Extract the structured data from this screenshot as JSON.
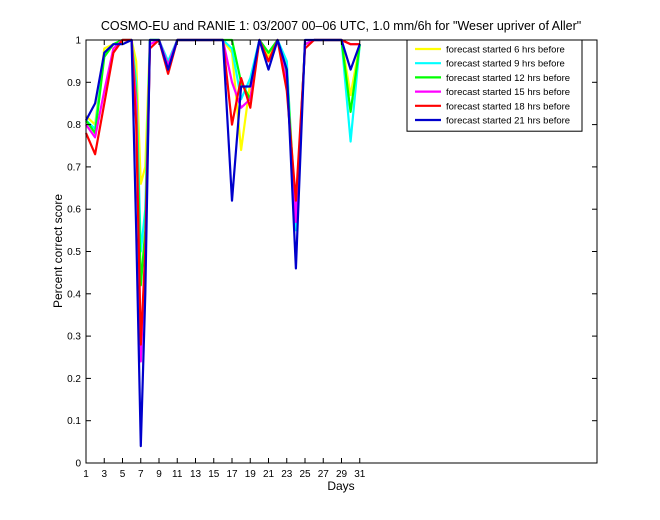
{
  "chart_data": {
    "type": "line",
    "title": "COSMO-EU and RANIE 1: 03/2007 00–06 UTC, 1.0 mm/6h for \"Weser upriver of Aller\"",
    "xlabel": "Days",
    "ylabel": "Percent correct score",
    "xlim": [
      1,
      57
    ],
    "ylim": [
      0,
      1
    ],
    "xticks": [
      1,
      3,
      5,
      7,
      9,
      11,
      13,
      15,
      17,
      19,
      21,
      23,
      25,
      27,
      29,
      31
    ],
    "yticks": [
      0,
      0.1,
      0.2,
      0.3,
      0.4,
      0.5,
      0.6,
      0.7,
      0.8,
      0.9,
      1
    ],
    "legend_position": "top-right",
    "grid": false,
    "series": [
      {
        "name": "forecast started 6 hrs before",
        "color": "#ffff00",
        "points": [
          [
            1,
            0.82
          ],
          [
            2,
            0.8
          ],
          [
            3,
            0.98
          ],
          [
            4,
            0.99
          ],
          [
            5,
            1
          ],
          [
            6,
            1
          ],
          [
            6.5,
            0.95
          ],
          [
            7,
            0.66
          ],
          [
            7.5,
            0.7
          ],
          [
            8,
            1
          ],
          [
            9,
            1
          ],
          [
            10,
            0.94
          ],
          [
            11,
            1
          ],
          [
            12,
            1
          ],
          [
            13,
            1
          ],
          [
            14,
            1
          ],
          [
            15,
            1
          ],
          [
            16,
            1
          ],
          [
            17,
            0.97
          ],
          [
            18,
            0.74
          ],
          [
            19,
            0.9
          ],
          [
            20,
            1
          ],
          [
            21,
            0.96
          ],
          [
            22,
            1
          ],
          [
            23,
            0.94
          ],
          [
            24,
            0.58
          ],
          [
            25,
            0.99
          ],
          [
            26,
            1
          ],
          [
            27,
            1
          ],
          [
            28,
            1
          ],
          [
            29,
            1
          ],
          [
            30,
            0.87
          ],
          [
            31,
            0.99
          ]
        ]
      },
      {
        "name": "forecast started 9 hrs before",
        "color": "#00ffff",
        "points": [
          [
            1,
            0.81
          ],
          [
            2,
            0.79
          ],
          [
            3,
            0.97
          ],
          [
            4,
            0.99
          ],
          [
            5,
            1
          ],
          [
            6,
            1
          ],
          [
            6.5,
            0.9
          ],
          [
            7,
            0.5
          ],
          [
            7.5,
            0.6
          ],
          [
            8,
            1
          ],
          [
            9,
            1
          ],
          [
            10,
            0.95
          ],
          [
            11,
            1
          ],
          [
            12,
            1
          ],
          [
            13,
            1
          ],
          [
            14,
            1
          ],
          [
            15,
            1
          ],
          [
            16,
            1
          ],
          [
            17,
            0.98
          ],
          [
            18,
            0.86
          ],
          [
            19,
            0.91
          ],
          [
            20,
            1
          ],
          [
            21,
            0.97
          ],
          [
            22,
            1
          ],
          [
            23,
            0.95
          ],
          [
            24,
            0.55
          ],
          [
            25,
            0.99
          ],
          [
            26,
            1
          ],
          [
            27,
            1
          ],
          [
            28,
            1
          ],
          [
            29,
            1
          ],
          [
            30,
            0.76
          ],
          [
            31,
            0.99
          ]
        ]
      },
      {
        "name": "forecast started 12 hrs before",
        "color": "#00ff00",
        "points": [
          [
            1,
            0.81
          ],
          [
            2,
            0.78
          ],
          [
            3,
            0.96
          ],
          [
            4,
            0.99
          ],
          [
            5,
            1
          ],
          [
            6,
            1
          ],
          [
            6.5,
            0.87
          ],
          [
            7,
            0.42
          ],
          [
            7.5,
            0.55
          ],
          [
            8,
            1
          ],
          [
            9,
            1
          ],
          [
            10,
            0.94
          ],
          [
            11,
            1
          ],
          [
            12,
            1
          ],
          [
            13,
            1
          ],
          [
            14,
            1
          ],
          [
            15,
            1
          ],
          [
            16,
            1
          ],
          [
            17,
            1
          ],
          [
            18,
            0.9
          ],
          [
            19,
            0.86
          ],
          [
            20,
            1
          ],
          [
            21,
            0.97
          ],
          [
            22,
            1
          ],
          [
            23,
            0.92
          ],
          [
            24,
            0.58
          ],
          [
            25,
            0.99
          ],
          [
            26,
            1
          ],
          [
            27,
            1
          ],
          [
            28,
            1
          ],
          [
            29,
            1
          ],
          [
            30,
            0.83
          ],
          [
            31,
            0.99
          ]
        ]
      },
      {
        "name": "forecast started 15 hrs before",
        "color": "#ff00ff",
        "points": [
          [
            1,
            0.8
          ],
          [
            2,
            0.77
          ],
          [
            3,
            0.88
          ],
          [
            4,
            0.98
          ],
          [
            5,
            1
          ],
          [
            6,
            1
          ],
          [
            6.5,
            0.85
          ],
          [
            7,
            0.24
          ],
          [
            7.5,
            0.5
          ],
          [
            8,
            0.99
          ],
          [
            9,
            1
          ],
          [
            10,
            0.94
          ],
          [
            11,
            1
          ],
          [
            12,
            1
          ],
          [
            13,
            1
          ],
          [
            14,
            1
          ],
          [
            15,
            1
          ],
          [
            16,
            1
          ],
          [
            17,
            0.9
          ],
          [
            18,
            0.84
          ],
          [
            19,
            0.86
          ],
          [
            20,
            1
          ],
          [
            21,
            0.95
          ],
          [
            22,
            1
          ],
          [
            23,
            0.9
          ],
          [
            24,
            0.57
          ],
          [
            25,
            0.99
          ],
          [
            26,
            1
          ],
          [
            27,
            1
          ],
          [
            28,
            1
          ],
          [
            29,
            1
          ],
          [
            30,
            0.99
          ],
          [
            31,
            0.99
          ]
        ]
      },
      {
        "name": "forecast started 18 hrs before",
        "color": "#ff0000",
        "points": [
          [
            1,
            0.78
          ],
          [
            2,
            0.73
          ],
          [
            3,
            0.85
          ],
          [
            4,
            0.97
          ],
          [
            5,
            1
          ],
          [
            6,
            1
          ],
          [
            6.5,
            0.8
          ],
          [
            7,
            0.28
          ],
          [
            7.5,
            0.5
          ],
          [
            8,
            0.98
          ],
          [
            9,
            1
          ],
          [
            10,
            0.92
          ],
          [
            11,
            1
          ],
          [
            12,
            1
          ],
          [
            13,
            1
          ],
          [
            14,
            1
          ],
          [
            15,
            1
          ],
          [
            16,
            1
          ],
          [
            17,
            0.8
          ],
          [
            18,
            0.91
          ],
          [
            19,
            0.84
          ],
          [
            20,
            1
          ],
          [
            21,
            0.95
          ],
          [
            22,
            1
          ],
          [
            23,
            0.88
          ],
          [
            24,
            0.62
          ],
          [
            25,
            0.98
          ],
          [
            26,
            1
          ],
          [
            27,
            1
          ],
          [
            28,
            1
          ],
          [
            29,
            1
          ],
          [
            30,
            0.99
          ],
          [
            31,
            0.99
          ]
        ]
      },
      {
        "name": "forecast started 21 hrs before",
        "color": "#0000cc",
        "points": [
          [
            1,
            0.81
          ],
          [
            2,
            0.85
          ],
          [
            3,
            0.97
          ],
          [
            4,
            0.99
          ],
          [
            5,
            0.99
          ],
          [
            6,
            1
          ],
          [
            6.5,
            0.55
          ],
          [
            7,
            0.04
          ],
          [
            7.5,
            0.4
          ],
          [
            8,
            1
          ],
          [
            9,
            1
          ],
          [
            10,
            0.93
          ],
          [
            11,
            1
          ],
          [
            12,
            1
          ],
          [
            13,
            1
          ],
          [
            14,
            1
          ],
          [
            15,
            1
          ],
          [
            16,
            1
          ],
          [
            17,
            0.62
          ],
          [
            18,
            0.89
          ],
          [
            19,
            0.89
          ],
          [
            20,
            1
          ],
          [
            21,
            0.93
          ],
          [
            22,
            1
          ],
          [
            23,
            0.93
          ],
          [
            24,
            0.46
          ],
          [
            25,
            1
          ],
          [
            26,
            1
          ],
          [
            27,
            1
          ],
          [
            28,
            1
          ],
          [
            29,
            1
          ],
          [
            30,
            0.93
          ],
          [
            31,
            0.99
          ]
        ]
      }
    ]
  }
}
